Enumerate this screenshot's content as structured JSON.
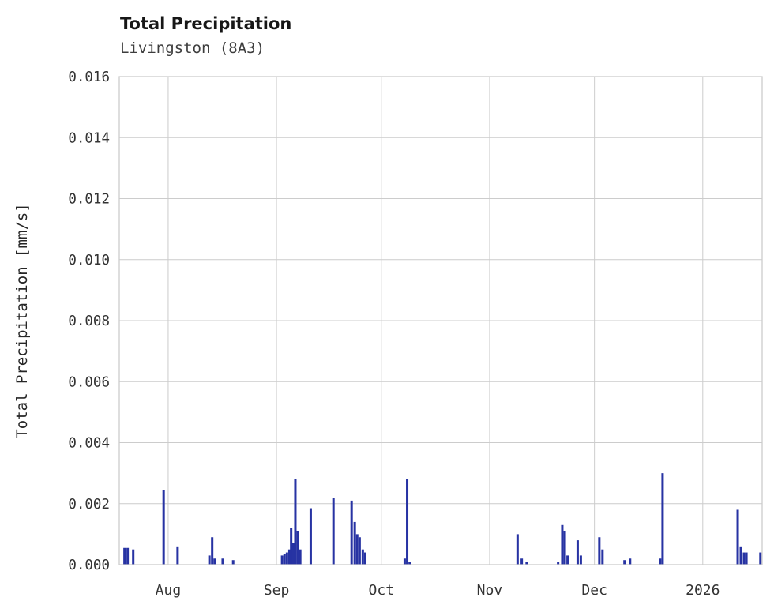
{
  "chart": {
    "title": "Total Precipitation",
    "subtitle": "Livingston (8A3)",
    "ylabel": "Total Precipitation [mm/s]"
  },
  "chart_data": {
    "type": "bar",
    "title": "Total Precipitation",
    "subtitle": "Livingston (8A3)",
    "xlabel": "",
    "ylabel": "Total Precipitation [mm/s]",
    "ylim": [
      0,
      0.016
    ],
    "yticks": [
      0,
      0.002,
      0.004,
      0.006,
      0.008,
      0.01,
      0.012,
      0.014,
      0.016
    ],
    "ytick_labels": [
      "0.000",
      "0.002",
      "0.004",
      "0.006",
      "0.008",
      "0.010",
      "0.012",
      "0.014",
      "0.016"
    ],
    "x_domain_days": [
      0,
      184
    ],
    "x_ticks": [
      {
        "day": 14,
        "label": "Aug"
      },
      {
        "day": 45,
        "label": "Sep"
      },
      {
        "day": 75,
        "label": "Oct"
      },
      {
        "day": 106,
        "label": "Nov"
      },
      {
        "day": 136,
        "label": "Dec"
      },
      {
        "day": 167,
        "label": "2026"
      }
    ],
    "grid": true,
    "legend": "none",
    "bar_color": "#2733a3",
    "grid_color": "#cccccc",
    "text_color": "#333333",
    "points": [
      {
        "day": 1.5,
        "value": 0.00055
      },
      {
        "day": 2.4,
        "value": 0.00055
      },
      {
        "day": 4.0,
        "value": 0.0005
      },
      {
        "day": 12.7,
        "value": 0.00245
      },
      {
        "day": 16.7,
        "value": 0.0006
      },
      {
        "day": 25.8,
        "value": 0.0003
      },
      {
        "day": 26.6,
        "value": 0.0009
      },
      {
        "day": 27.3,
        "value": 0.0002
      },
      {
        "day": 29.6,
        "value": 0.0002
      },
      {
        "day": 32.6,
        "value": 0.00015
      },
      {
        "day": 46.6,
        "value": 0.0003
      },
      {
        "day": 47.3,
        "value": 0.00035
      },
      {
        "day": 48.0,
        "value": 0.0004
      },
      {
        "day": 48.7,
        "value": 0.0005
      },
      {
        "day": 49.2,
        "value": 0.0012
      },
      {
        "day": 49.8,
        "value": 0.0007
      },
      {
        "day": 50.4,
        "value": 0.0028
      },
      {
        "day": 51.1,
        "value": 0.0011
      },
      {
        "day": 51.8,
        "value": 0.0005
      },
      {
        "day": 54.8,
        "value": 0.00185
      },
      {
        "day": 61.3,
        "value": 0.0022
      },
      {
        "day": 66.5,
        "value": 0.0021
      },
      {
        "day": 67.4,
        "value": 0.0014
      },
      {
        "day": 68.1,
        "value": 0.001
      },
      {
        "day": 68.8,
        "value": 0.0009
      },
      {
        "day": 69.7,
        "value": 0.0005
      },
      {
        "day": 70.4,
        "value": 0.0004
      },
      {
        "day": 81.7,
        "value": 0.0002
      },
      {
        "day": 82.4,
        "value": 0.0028
      },
      {
        "day": 83.1,
        "value": 0.0001
      },
      {
        "day": 114.0,
        "value": 0.001
      },
      {
        "day": 115.2,
        "value": 0.0002
      },
      {
        "day": 116.6,
        "value": 0.0001
      },
      {
        "day": 125.6,
        "value": 0.0001
      },
      {
        "day": 126.8,
        "value": 0.0013
      },
      {
        "day": 127.5,
        "value": 0.0011
      },
      {
        "day": 128.3,
        "value": 0.0003
      },
      {
        "day": 131.2,
        "value": 0.0008
      },
      {
        "day": 132.1,
        "value": 0.0003
      },
      {
        "day": 137.4,
        "value": 0.0009
      },
      {
        "day": 138.3,
        "value": 0.0005
      },
      {
        "day": 144.6,
        "value": 0.00015
      },
      {
        "day": 146.2,
        "value": 0.0002
      },
      {
        "day": 154.8,
        "value": 0.0002
      },
      {
        "day": 155.5,
        "value": 0.003
      },
      {
        "day": 177.0,
        "value": 0.0018
      },
      {
        "day": 177.9,
        "value": 0.0006
      },
      {
        "day": 178.8,
        "value": 0.0004
      },
      {
        "day": 179.5,
        "value": 0.0004
      },
      {
        "day": 183.5,
        "value": 0.0004
      }
    ]
  }
}
